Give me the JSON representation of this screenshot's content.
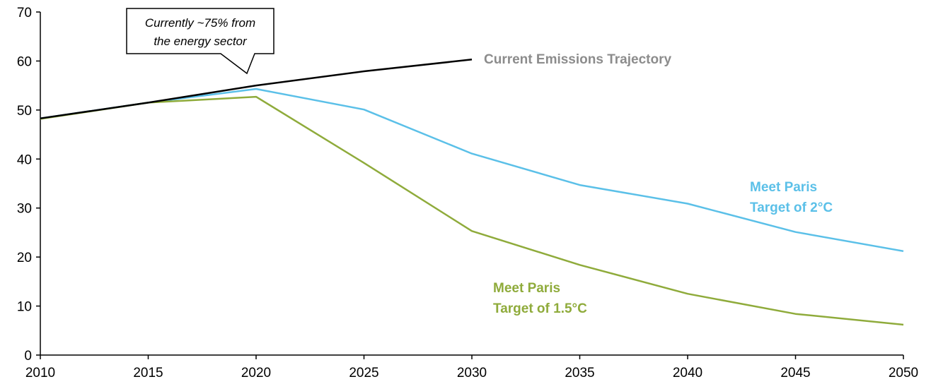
{
  "chart_data": {
    "type": "line",
    "title": "",
    "xlabel": "",
    "ylabel": "",
    "x": [
      2010,
      2015,
      2020,
      2025,
      2030,
      2035,
      2040,
      2045,
      2050
    ],
    "xlim": [
      2010,
      2050
    ],
    "ylim": [
      0,
      70
    ],
    "x_ticks": [
      "2010",
      "2015",
      "2020",
      "2025",
      "2030",
      "2035",
      "2040",
      "2045",
      "2050"
    ],
    "y_ticks": [
      "0",
      "10",
      "20",
      "30",
      "40",
      "50",
      "60",
      "70"
    ],
    "grid": false,
    "legend": "none",
    "series": [
      {
        "name": "Current Emissions Trajectory",
        "color": "#000000",
        "x": [
          2010,
          2015,
          2020,
          2025,
          2030
        ],
        "values": [
          48.3,
          51.5,
          55,
          57.9,
          60.3
        ]
      },
      {
        "name": "Meet Paris Target of 2°C",
        "color": "#5bc0e8",
        "x": [
          2010,
          2015,
          2020,
          2025,
          2030,
          2035,
          2040,
          2045,
          2050
        ],
        "values": [
          48.3,
          51.5,
          54.3,
          50.1,
          41.1,
          34.7,
          30.9,
          25.1,
          21.2
        ]
      },
      {
        "name": "Meet Paris Target of 1.5°C",
        "color": "#8fab3b",
        "x": [
          2010,
          2015,
          2020,
          2025,
          2030,
          2035,
          2040,
          2045,
          2050
        ],
        "values": [
          48.2,
          51.5,
          52.7,
          39.2,
          25.3,
          18.4,
          12.5,
          8.4,
          6.2
        ]
      }
    ],
    "labels": {
      "current": "Current Emissions Trajectory",
      "paris2_line1": "Meet Paris",
      "paris2_line2": "Target of 2°C",
      "paris15_line1": "Meet Paris",
      "paris15_line2": "Target of 1.5°C"
    },
    "label_colors": {
      "current": "#8c8c8c",
      "paris2": "#5bc0e8",
      "paris15": "#8fab3b"
    },
    "callout": {
      "line1": "Currently ~75% from",
      "line2": "the energy sector"
    }
  }
}
